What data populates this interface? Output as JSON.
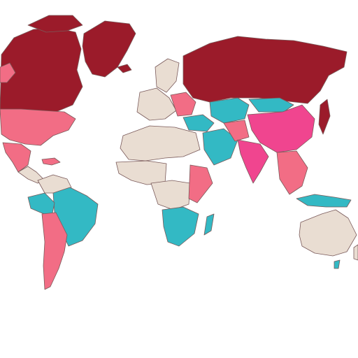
{
  "map": {
    "colors": {
      "dark_red": "#9b1b2a",
      "pink": "#f26d85",
      "magenta": "#f0458f",
      "teal": "#33b9c4",
      "beige": "#e9ddd2",
      "ocean": "#ffffff",
      "outline": "#7a5a5a"
    },
    "caption_left": "",
    "caption_right": ""
  }
}
